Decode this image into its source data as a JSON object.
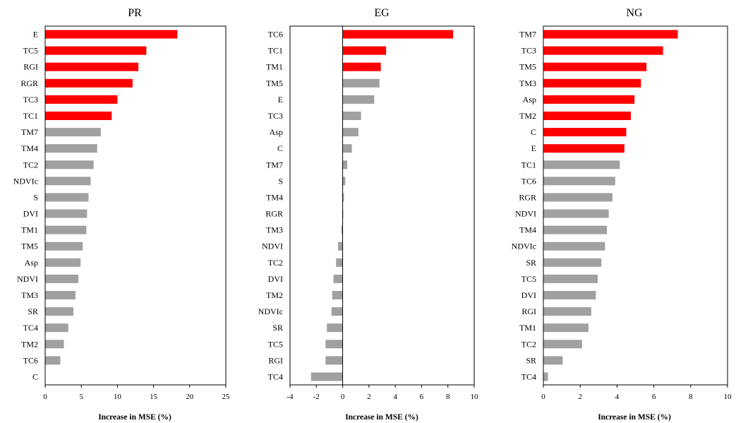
{
  "colors": {
    "highlight": "#ff0000",
    "normal": "#a0a0a0"
  },
  "chart_data": [
    {
      "type": "bar",
      "orientation": "horizontal",
      "title": "PR",
      "xlabel": "Increase in MSE (%)",
      "ylabel": "",
      "xlim": [
        0,
        25
      ],
      "xticks": [
        0,
        5,
        10,
        15,
        20,
        25
      ],
      "categories": [
        "E",
        "TC5",
        "RGI",
        "RGR",
        "TC3",
        "TC1",
        "TM7",
        "TM4",
        "TC2",
        "NDVIc",
        "S",
        "DVI",
        "TM1",
        "TM5",
        "Asp",
        "NDVI",
        "TM3",
        "SR",
        "TC4",
        "TM2",
        "TC6",
        "C"
      ],
      "values": [
        18.3,
        14.0,
        12.9,
        12.1,
        10.0,
        9.2,
        7.7,
        7.2,
        6.7,
        6.3,
        6.0,
        5.8,
        5.7,
        5.2,
        4.9,
        4.6,
        4.2,
        3.9,
        3.2,
        2.6,
        2.1,
        0
      ],
      "highlighted_count": 6
    },
    {
      "type": "bar",
      "orientation": "horizontal",
      "title": "EG",
      "xlabel": "Increase in MSE (%)",
      "ylabel": "",
      "xlim": [
        -4,
        10
      ],
      "xticks": [
        -4,
        -2,
        0,
        2,
        4,
        6,
        8,
        10
      ],
      "categories": [
        "TC6",
        "TC1",
        "TM1",
        "TM5",
        "E",
        "TC3",
        "Asp",
        "C",
        "TM7",
        "S",
        "TM4",
        "RGR",
        "TM3",
        "NDVI",
        "TC2",
        "DVI",
        "TM2",
        "NDVIc",
        "SR",
        "TC5",
        "RGI",
        "TC4"
      ],
      "values": [
        8.4,
        3.3,
        2.9,
        2.8,
        2.4,
        1.4,
        1.2,
        0.7,
        0.35,
        0.2,
        0.1,
        0.05,
        -0.1,
        -0.35,
        -0.5,
        -0.7,
        -0.8,
        -0.85,
        -1.2,
        -1.3,
        -1.3,
        -2.4
      ],
      "highlighted_count": 3
    },
    {
      "type": "bar",
      "orientation": "horizontal",
      "title": "NG",
      "xlabel": "Increase in MSE (%)",
      "ylabel": "",
      "xlim": [
        0,
        10
      ],
      "xticks": [
        0,
        2,
        4,
        6,
        8,
        10
      ],
      "categories": [
        "TM7",
        "TC3",
        "TM5",
        "TM3",
        "Asp",
        "TM2",
        "C",
        "E",
        "TC1",
        "TC6",
        "RGR",
        "NDVI",
        "TM4",
        "NDVIc",
        "SR",
        "TC5",
        "DVI",
        "RGI",
        "TM1",
        "TC2",
        "SR",
        "TC4"
      ],
      "values": [
        7.3,
        6.5,
        5.6,
        5.3,
        4.95,
        4.75,
        4.5,
        4.4,
        4.15,
        3.9,
        3.75,
        3.55,
        3.45,
        3.35,
        3.15,
        2.95,
        2.85,
        2.6,
        2.45,
        2.1,
        1.05,
        0.25
      ],
      "highlighted_count": 8
    }
  ]
}
